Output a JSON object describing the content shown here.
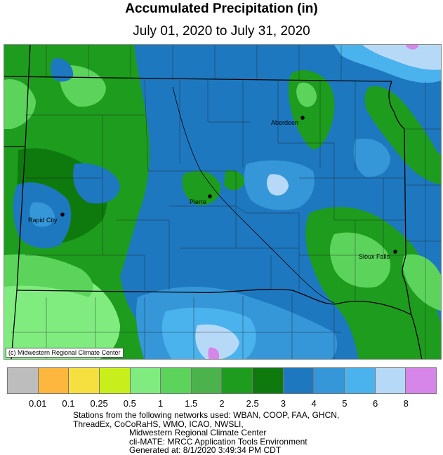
{
  "title": "Accumulated Precipitation (in)",
  "subtitle": "July 01, 2020 to July 31, 2020",
  "copyright": "(c) Midwestern Regional Climate Center",
  "cities": [
    {
      "name": "Aberdeen"
    },
    {
      "name": "Pierre"
    },
    {
      "name": "Rapid City"
    },
    {
      "name": "Sioux Falls"
    }
  ],
  "legend": {
    "colors": [
      "#bdbdbd",
      "#fdb73f",
      "#f5e040",
      "#c8ef1c",
      "#80ec80",
      "#5cd45c",
      "#4cb24c",
      "#1e9c1e",
      "#0e7a0e",
      "#1e78bf",
      "#3596d8",
      "#4ab2ec",
      "#b7d9f8",
      "#d685e8"
    ],
    "ticks": [
      "0.01",
      "0.1",
      "0.25",
      "0.5",
      "1",
      "1.5",
      "2",
      "2.5",
      "3",
      "4",
      "5",
      "6",
      "8"
    ]
  },
  "footer": {
    "line1": "Stations from the following networks used: WBAN, COOP, FAA, GHCN,",
    "line2": "ThreadEx, CoCoRaHS, WMO, ICAO, NWSLI,",
    "line3": "Midwestern Regional Climate Center",
    "line4": "cli-MATE: MRCC Application Tools Environment",
    "line5": "Generated at: 8/1/2020 3:49:34 PM CDT"
  }
}
